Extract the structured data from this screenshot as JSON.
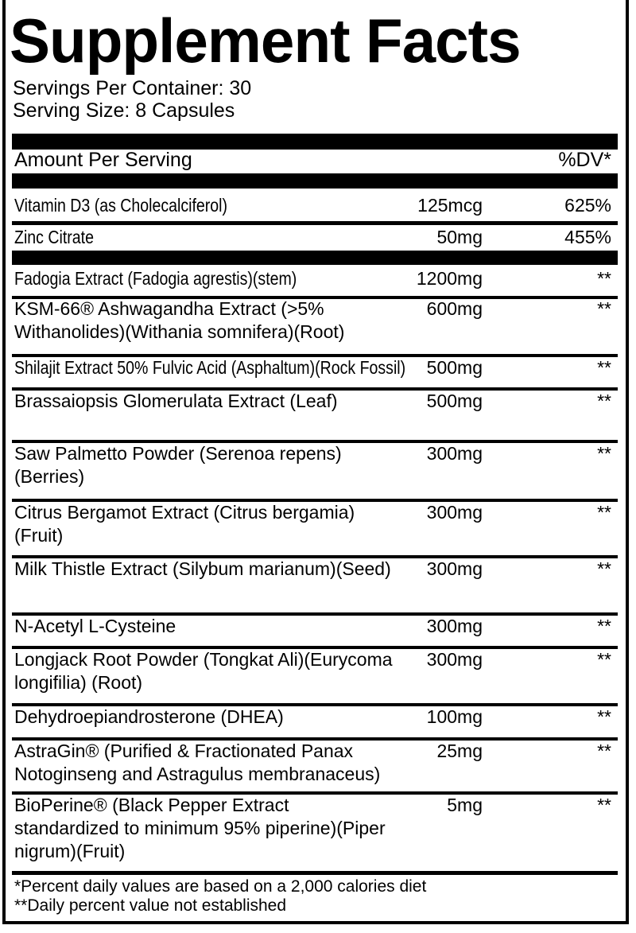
{
  "title": "Supplement Facts",
  "servings_per_container": "Servings Per Container: 30",
  "serving_size": "Serving Size: 8 Capsules",
  "header": {
    "amount_per_serving": "Amount Per Serving",
    "dv": "%DV*"
  },
  "vitamins": [
    {
      "name": "Vitamin D3 (as Cholecalciferol)",
      "amount": "125mcg",
      "dv": "625%"
    },
    {
      "name": "Zinc Citrate",
      "amount": "50mg",
      "dv": "455%"
    }
  ],
  "ingredients": [
    {
      "name": "Fadogia Extract  (Fadogia agrestis)(stem)",
      "amount": "1200mg",
      "dv": "**"
    },
    {
      "name": "KSM-66® Ashwagandha Extract (>5% Withanolides)(Withania somnifera)(Root)",
      "amount": "600mg",
      "dv": "**"
    },
    {
      "name": "Shilajit Extract 50% Fulvic Acid (Asphaltum)(Rock Fossil)",
      "amount": "500mg",
      "dv": "**"
    },
    {
      "name": "Brassaiopsis Glomerulata Extract (Leaf)",
      "amount": "500mg",
      "dv": "**"
    },
    {
      "name": "Saw Palmetto Powder (Serenoa repens)(Berries)",
      "amount": "300mg",
      "dv": "**"
    },
    {
      "name": "Citrus Bergamot Extract (Citrus bergamia)(Fruit)",
      "amount": "300mg",
      "dv": "**"
    },
    {
      "name": "Milk Thistle Extract (Silybum marianum)(Seed)",
      "amount": "300mg",
      "dv": "**"
    },
    {
      "name": "N-Acetyl L-Cysteine",
      "amount": "300mg",
      "dv": "**"
    },
    {
      "name": "Longjack Root Powder (Tongkat Ali)(Eurycoma longifilia) (Root)",
      "amount": "300mg",
      "dv": "**"
    },
    {
      "name": "Dehydroepiandrosterone (DHEA)",
      "amount": "100mg",
      "dv": "**"
    },
    {
      "name": "AstraGin® (Purified & Fractionated Panax Notoginseng and Astragulus membranaceus)",
      "amount": "25mg",
      "dv": "**"
    },
    {
      "name": "BioPerine® (Black Pepper Extract standardized to minimum 95% piperine)(Piper nigrum)(Fruit)",
      "amount": "5mg",
      "dv": "**"
    }
  ],
  "footnotes": [
    "*Percent daily values are based on a 2,000 calories diet",
    "**Daily percent value not established"
  ]
}
